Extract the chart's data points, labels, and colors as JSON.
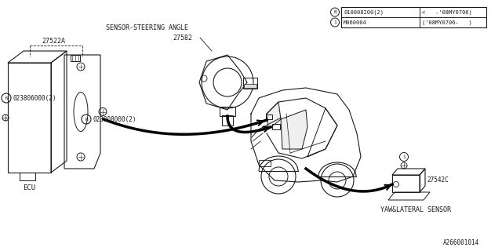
{
  "bg_color": "#ffffff",
  "line_color": "#1a1a1a",
  "part_number_diagram": "A266001014",
  "table": {
    "col1_row1": "010008200(2)",
    "col1_row2": "M060004",
    "col2_row1": "<   -'08MY0706)",
    "col2_row2": "('08MY0706-   )"
  },
  "labels": {
    "sensor_steering": "SENSOR-STEERING ANGLE",
    "sensor_num": "27582",
    "ecu_num": "27522A",
    "ecu_label": "ECU",
    "bolt1": "023806000(2)",
    "bolt2": "023808000(2)",
    "yaw_num": "27542C",
    "yaw_label": "YAW&LATERAL SENSOR"
  }
}
